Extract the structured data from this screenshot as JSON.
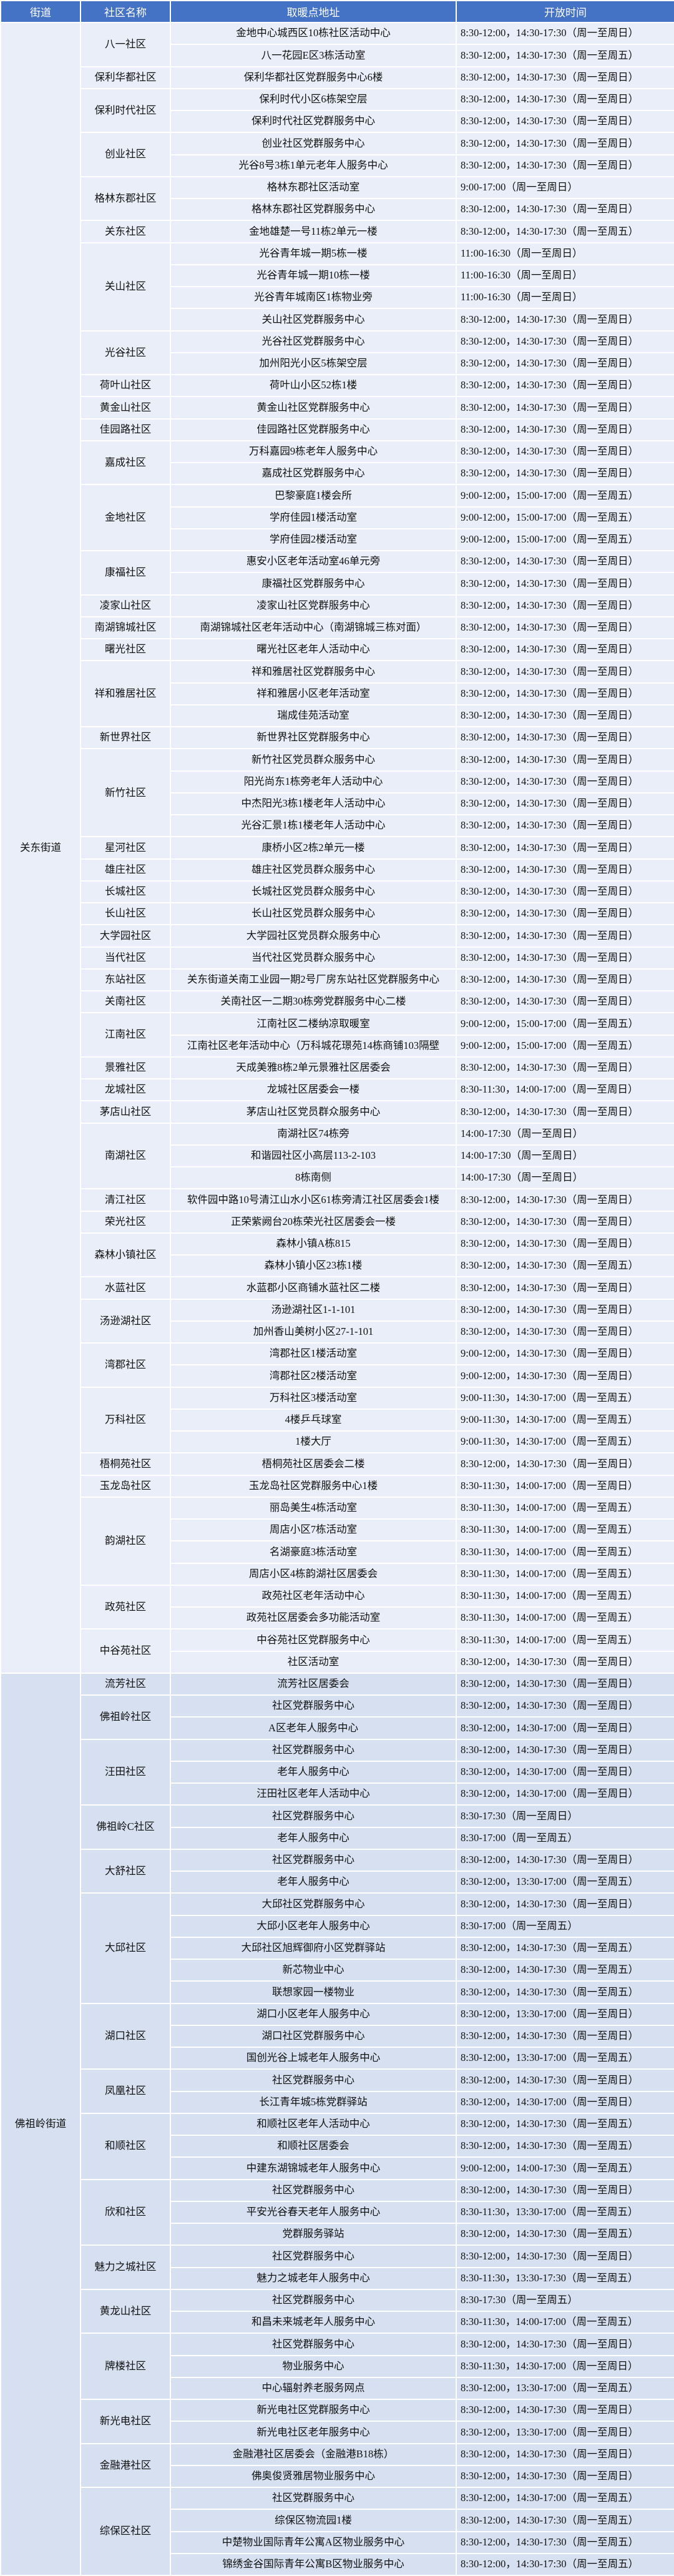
{
  "headers": {
    "street": "街道",
    "community": "社区名称",
    "address": "取暖点地址",
    "hours": "开放时间"
  },
  "streets": [
    {
      "name": "关东街道",
      "communities": [
        {
          "name": "八一社区",
          "sites": [
            {
              "address": "金地中心城西区10栋社区活动中心",
              "hours": "8:30-12:00，14:30-17:30（周一至周日）"
            },
            {
              "address": "八一花园E区3栋活动室",
              "hours": "8:30-12:00，14:30-17:30（周一至周五）"
            }
          ]
        },
        {
          "name": "保利华都社区",
          "sites": [
            {
              "address": "保利华都社区党群服务中心6楼",
              "hours": "8:30-12:00，14:30-17:30（周一至周日）"
            }
          ]
        },
        {
          "name": "保利时代社区",
          "sites": [
            {
              "address": "保利时代小区6栋架空层",
              "hours": "8:30-12:00，14:30-17:30（周一至周日）"
            },
            {
              "address": "保利时代社区党群服务中心",
              "hours": "8:30-12:00，14:30-17:30（周一至周日）"
            }
          ]
        },
        {
          "name": "创业社区",
          "sites": [
            {
              "address": "创业社区党群服务中心",
              "hours": "8:30-12:00，14:30-17:30（周一至周日）"
            },
            {
              "address": "光谷8号3栋1单元老年人服务中心",
              "hours": "8:30-12:00，14:30-17:30（周一至周日）"
            }
          ]
        },
        {
          "name": "格林东郡社区",
          "sites": [
            {
              "address": "格林东郡社区活动室",
              "hours": "9:00-17:00（周一至周日）"
            },
            {
              "address": "格林东郡社区党群服务中心",
              "hours": "8:30-12:00，14:30-17:30（周一至周日）"
            }
          ]
        },
        {
          "name": "关东社区",
          "sites": [
            {
              "address": "金地雄楚一号11栋2单元一楼",
              "hours": "8:30-12:00，14:30-17:30（周一至周五）"
            }
          ]
        },
        {
          "name": "关山社区",
          "sites": [
            {
              "address": "光谷青年城一期5栋一楼",
              "hours": "11:00-16:30（周一至周日）"
            },
            {
              "address": "光谷青年城一期10栋一楼",
              "hours": "11:00-16:30（周一至周日）"
            },
            {
              "address": "光谷青年城南区1栋物业旁",
              "hours": "11:00-16:30（周一至周日）"
            },
            {
              "address": "关山社区党群服务中心",
              "hours": "8:30-12:00，14:30-17:30（周一至周日）"
            }
          ]
        },
        {
          "name": "光谷社区",
          "sites": [
            {
              "address": "光谷社区党群服务中心",
              "hours": "8:30-12:00，14:30-17:30（周一至周日）"
            },
            {
              "address": "加州阳光小区5栋架空层",
              "hours": "8:30-12:00，14:30-17:30（周一至周日）"
            }
          ]
        },
        {
          "name": "荷叶山社区",
          "sites": [
            {
              "address": "荷叶山小区52栋1楼",
              "hours": "8:30-12:00，14:30-17:30（周一至周日）"
            }
          ]
        },
        {
          "name": "黄金山社区",
          "sites": [
            {
              "address": "黄金山社区党群服务中心",
              "hours": "8:30-12:00，14:30-17:30（周一至周日）"
            }
          ]
        },
        {
          "name": "佳园路社区",
          "sites": [
            {
              "address": "佳园路社区党群服务中心",
              "hours": "8:30-12:00，14:30-17:30（周一至周日）"
            }
          ]
        },
        {
          "name": "嘉成社区",
          "sites": [
            {
              "address": "万科嘉园9栋老年人服务中心",
              "hours": "8:30-12:00，14:30-17:30（周一至周日）"
            },
            {
              "address": "嘉成社区党群服务中心",
              "hours": "8:30-12:00，14:30-17:30（周一至周日）"
            }
          ]
        },
        {
          "name": "金地社区",
          "sites": [
            {
              "address": "巴黎豪庭1楼会所",
              "hours": "9:00-12:00，15:00-17:00（周一至周五）"
            },
            {
              "address": "学府佳园1楼活动室",
              "hours": "9:00-12:00，15:00-17:00（周一至周五）"
            },
            {
              "address": "学府佳园2楼活动室",
              "hours": "9:00-12:00，15:00-17:00（周一至周五）"
            }
          ]
        },
        {
          "name": "康福社区",
          "sites": [
            {
              "address": "惠安小区老年活动室46单元旁",
              "hours": "8:30-12:00，14:30-17:30（周一至周日）"
            },
            {
              "address": "康福社区党群服务中心",
              "hours": "8:30-12:00，14:30-17:30（周一至周日）"
            }
          ]
        },
        {
          "name": "凌家山社区",
          "sites": [
            {
              "address": "凌家山社区党群服务中心",
              "hours": "8:30-12:00，14:30-17:30（周一至周日）"
            }
          ]
        },
        {
          "name": "南湖锦城社区",
          "sites": [
            {
              "address": "南湖锦城社区老年活动中心（南湖锦城三栋对面）",
              "hours": "8:30-12:00，14:30-17:30（周一至周日）"
            }
          ]
        },
        {
          "name": "曙光社区",
          "sites": [
            {
              "address": "曙光社区老年人活动中心",
              "hours": "8:30-12:00，14:30-17:30（周一至周日）"
            }
          ]
        },
        {
          "name": "祥和雅居社区",
          "sites": [
            {
              "address": "祥和雅居社区党群服务中心",
              "hours": "8:30-12:00，14:30-17:30（周一至周日）"
            },
            {
              "address": "祥和雅居小区老年活动室",
              "hours": "8:30-12:00，14:30-17:30（周一至周日）"
            },
            {
              "address": "瑞成佳苑活动室",
              "hours": "8:30-12:00，14:30-17:30（周一至周日）"
            }
          ]
        },
        {
          "name": "新世界社区",
          "sites": [
            {
              "address": "新世界社区党群服务中心",
              "hours": "8:30-12:00，14:30-17:30（周一至周日）"
            }
          ]
        },
        {
          "name": "新竹社区",
          "sites": [
            {
              "address": "新竹社区党员群众服务中心",
              "hours": "8:30-12:00，14:30-17:30（周一至周日）"
            },
            {
              "address": "阳光尚东1栋旁老年人活动中心",
              "hours": "8:30-12:00，14:30-17:30（周一至周日）"
            },
            {
              "address": "中杰阳光3栋1楼老年人活动中心",
              "hours": "8:30-12:00，14:30-17:30（周一至周日）"
            },
            {
              "address": "光谷汇景1栋1楼老年人活动中心",
              "hours": "8:30-12:00，14:30-17:30（周一至周日）"
            }
          ]
        },
        {
          "name": "星河社区",
          "sites": [
            {
              "address": "康桥小区2栋2单元一楼",
              "hours": "8:30-12:00，14:30-17:30（周一至周日）"
            }
          ]
        },
        {
          "name": "雄庄社区",
          "sites": [
            {
              "address": "雄庄社区党员群众服务中心",
              "hours": "8:30-12:00，14:30-17:30（周一至周日）"
            }
          ]
        },
        {
          "name": "长城社区",
          "sites": [
            {
              "address": "长城社区党员群众服务中心",
              "hours": "8:30-12:00，14:30-17:30（周一至周日）"
            }
          ]
        },
        {
          "name": "长山社区",
          "sites": [
            {
              "address": "长山社区党员群众服务中心",
              "hours": "8:30-12:00，14:30-17:30（周一至周日）"
            }
          ]
        },
        {
          "name": "大学园社区",
          "sites": [
            {
              "address": "大学园社区党员群众服务中心",
              "hours": "8:30-12:00，14:30-17:30（周一至周日）"
            }
          ]
        },
        {
          "name": "当代社区",
          "sites": [
            {
              "address": "当代社区党员群众服务中心",
              "hours": "8:30-12:00，14:30-17:30（周一至周日）"
            }
          ]
        },
        {
          "name": "东站社区",
          "sites": [
            {
              "address": "关东街道关南工业园一期2号厂房东站社区党群服务中心",
              "hours": "8:30-12:00，14:30-17:30（周一至周日）"
            }
          ]
        },
        {
          "name": "关南社区",
          "sites": [
            {
              "address": "关南社区一二期30栋旁党群服务中心二楼",
              "hours": "8:30-12:00，14:30-17:30（周一至周日）"
            }
          ]
        },
        {
          "name": "江南社区",
          "sites": [
            {
              "address": "江南社区二楼纳凉取暖室",
              "hours": "9:00-12:00，15:00-17:00（周一至周五）"
            },
            {
              "address": "江南社区老年活动中心（万科城花璟苑14栋商铺103隔壁",
              "hours": "9:00-12:00，15:00-17:00（周一至周五）"
            }
          ]
        },
        {
          "name": "景雅社区",
          "sites": [
            {
              "address": "天成美雅8栋2单元景雅社区居委会",
              "hours": "8:30-12:00，14:30-17:30（周一至周日）"
            }
          ]
        },
        {
          "name": "龙城社区",
          "sites": [
            {
              "address": "龙城社区居委会一楼",
              "hours": "8:30-11:30，14:00-17:00（周一至周日）"
            }
          ]
        },
        {
          "name": "茅店山社区",
          "sites": [
            {
              "address": "茅店山社区党员群众服务中心",
              "hours": "8:30-12:00，14:30-17:30（周一至周日）"
            }
          ]
        },
        {
          "name": "南湖社区",
          "sites": [
            {
              "address": "南湖社区74栋旁",
              "hours": "14:00-17:30（周一至周日）"
            },
            {
              "address": "和谐园社区小高层113-2-103",
              "hours": "14:00-17:30（周一至周日）"
            },
            {
              "address": "8栋南侧",
              "hours": "14:00-17:30（周一至周日）"
            }
          ]
        },
        {
          "name": "清江社区",
          "sites": [
            {
              "address": "软件园中路10号清江山水小区61栋旁清江社区居委会1楼",
              "hours": "8:30-12:00，14:30-17:30（周一至周日）"
            }
          ]
        },
        {
          "name": "荣光社区",
          "sites": [
            {
              "address": "正荣紫阙台20栋荣光社区居委会一楼",
              "hours": "8:30-12:00，14:30-17:30（周一至周日）"
            }
          ]
        },
        {
          "name": "森林小镇社区",
          "sites": [
            {
              "address": "森林小镇A栋815",
              "hours": "8:30-12:00，14:30-17:30（周一至周日）"
            },
            {
              "address": "森林小镇小区23栋1楼",
              "hours": "8:30-12:00，14:30-17:30（周一至周五）"
            }
          ]
        },
        {
          "name": "水蓝社区",
          "sites": [
            {
              "address": "水蓝郡小区商铺水蓝社区二楼",
              "hours": "8:30-12:00，14:30-17:30（周一至周日）"
            }
          ]
        },
        {
          "name": "汤逊湖社区",
          "sites": [
            {
              "address": "汤逊湖社区1-1-101",
              "hours": "8:30-12:00，14:30-17:30（周一至周日）"
            },
            {
              "address": "加州香山美树小区27-1-101",
              "hours": "8:30-12:00，14:30-17:30（周一至周日）"
            }
          ]
        },
        {
          "name": "湾郡社区",
          "sites": [
            {
              "address": "湾郡社区1楼活动室",
              "hours": "9:00-12:00，14:30-17:30（周一至周日）"
            },
            {
              "address": "湾郡社区2楼活动室",
              "hours": "9:00-12:00，14:30-17:30（周一至周日）"
            }
          ]
        },
        {
          "name": "万科社区",
          "sites": [
            {
              "address": "万科社区3楼活动室",
              "hours": "9:00-11:30，14:30-17:00（周一至周五）"
            },
            {
              "address": "4楼乒乓球室",
              "hours": "9:00-11:30，14:30-17:00（周一至周五）"
            },
            {
              "address": "1楼大厅",
              "hours": "9:00-11:30，14:30-17:00（周一至周五）"
            }
          ]
        },
        {
          "name": "梧桐苑社区",
          "sites": [
            {
              "address": "梧桐苑社区居委会二楼",
              "hours": "8:30-12:00，14:30-17:30（周一至周日）"
            }
          ]
        },
        {
          "name": "玉龙岛社区",
          "sites": [
            {
              "address": "玉龙岛社区党群服务中心1楼",
              "hours": "8:30-11:30，14:00-17:00（周一至周日）"
            }
          ]
        },
        {
          "name": "韵湖社区",
          "sites": [
            {
              "address": "丽岛美生4栋活动室",
              "hours": "8:30-11:30，14:00-17:00（周一至周五）"
            },
            {
              "address": "周店小区7栋活动室",
              "hours": "8:30-11:30，14:00-17:00（周一至周五）"
            },
            {
              "address": "名湖豪庭3栋活动室",
              "hours": "8:30-11:30，14:00-17:00（周一至周五）"
            },
            {
              "address": "周店小区4栋韵湖社区居委会",
              "hours": "8:30-11:30，14:00-17:00（周一至周五）"
            }
          ]
        },
        {
          "name": "政苑社区",
          "sites": [
            {
              "address": "政苑社区老年活动中心",
              "hours": "8:30-11:30，14:00-17:00（周一至周五）"
            },
            {
              "address": "政苑社区居委会多功能活动室",
              "hours": "8:30-11:30，14:00-17:00（周一至周五）"
            }
          ]
        },
        {
          "name": "中谷苑社区",
          "sites": [
            {
              "address": "中谷苑社区党群服务中心",
              "hours": "8:30-11:30，14:00-17:00（周一至周五）"
            },
            {
              "address": "社区活动室",
              "hours": "8:30-12:00，14:30-17:30（周一至周日）"
            }
          ]
        }
      ]
    },
    {
      "name": "佛祖岭街道",
      "communities": [
        {
          "name": "流芳社区",
          "sites": [
            {
              "address": "流芳社区居委会",
              "hours": "8:30-12:00，14:30-17:30（周一至周日）"
            }
          ]
        },
        {
          "name": "佛祖岭社区",
          "sites": [
            {
              "address": "社区党群服务中心",
              "hours": "8:30-12:00，14:30-17:30（周一至周日）"
            },
            {
              "address": "A区老年人服务中心",
              "hours": "8:30-12:00，14:30-17:00（周一至周日）"
            }
          ]
        },
        {
          "name": "汪田社区",
          "sites": [
            {
              "address": "社区党群服务中心",
              "hours": "8:30-12:00，14:30-17:30（周一至周日）"
            },
            {
              "address": "老年人服务中心",
              "hours": "8:30-12:00，14:30-17:00（周一至周日）"
            },
            {
              "address": "汪田社区老年人活动中心",
              "hours": "8:30-12:00，14:30-17:00（周一至周日）"
            }
          ]
        },
        {
          "name": "佛祖岭C社区",
          "sites": [
            {
              "address": "社区党群服务中心",
              "hours": "8:30-17:30（周一至周日）"
            },
            {
              "address": "老年人服务中心",
              "hours": "8:30-17:00（周一至周五）"
            }
          ]
        },
        {
          "name": "大舒社区",
          "sites": [
            {
              "address": "社区党群服务中心",
              "hours": "8:30-12:00，14:30-17:30（周一至周日）"
            },
            {
              "address": "老年人服务中心",
              "hours": "8:30-12:00，13:30-17:00（周一至周五）"
            }
          ]
        },
        {
          "name": "大邱社区",
          "sites": [
            {
              "address": "大邱社区党群服务中心",
              "hours": "8:30-12:00，14:30-17:30（周一至周日）"
            },
            {
              "address": "大邱小区老年人服务中心",
              "hours": "8:30-17:00（周一至周五）"
            },
            {
              "address": "大邱社区旭辉御府小区党群驿站",
              "hours": "8:30-12:00，14:30-17:30（周一至周五）"
            },
            {
              "address": "新芯物业中心",
              "hours": "8:30-12:00，14:30-17:30（周一至周五）"
            },
            {
              "address": "联想家园一楼物业",
              "hours": "8:30-12:00，14:30-17:30（周一至周五）"
            }
          ]
        },
        {
          "name": "湖口社区",
          "sites": [
            {
              "address": "湖口小区老年人服务中心",
              "hours": "8:30-12:00，13:30-17:00（周一至周日）"
            },
            {
              "address": "湖口社区党群服务中心",
              "hours": "8:30-12:00，14:30-17:30（周一至周日）"
            },
            {
              "address": "国创光谷上城老年人服务中心",
              "hours": "8:30-12:00，13:30-17:00（周一至周五）"
            }
          ]
        },
        {
          "name": "凤凰社区",
          "sites": [
            {
              "address": "社区党群服务中心",
              "hours": "8:30-12:00，14:30-17:30（周一至周日）"
            },
            {
              "address": "长江青年城5栋党群驿站",
              "hours": "8:30-12:00，14:30-17:00（周一至周日）"
            }
          ]
        },
        {
          "name": "和顺社区",
          "sites": [
            {
              "address": "和顺社区老年人活动中心",
              "hours": "8:30-12:00，14:30-17:30（周一至周五）"
            },
            {
              "address": "和顺社区居委会",
              "hours": "8:30-12:00，14:30-17:30（周一至周五）"
            },
            {
              "address": "中建东湖锦城老年人服务中心",
              "hours": "9:00-12:00，14:00-17:30（周一至周五）"
            }
          ]
        },
        {
          "name": "欣和社区",
          "sites": [
            {
              "address": "社区党群服务中心",
              "hours": "8:30-12:00，14:30-17:30（周一至周日）"
            },
            {
              "address": "平安光谷春天老年人服务中心",
              "hours": "8:30-11:30，13:30-17:00（周一至周五）"
            },
            {
              "address": "党群服务驿站",
              "hours": "8:30-12:00，14:30-17:30（周一至周五）"
            }
          ]
        },
        {
          "name": "魅力之城社区",
          "sites": [
            {
              "address": "社区党群服务中心",
              "hours": "8:30-12:00，14:30-17:30（周一至周日）"
            },
            {
              "address": "魅力之城老年人服务中心",
              "hours": "8:30-11:30，13:30-17:30（周一至周五）"
            }
          ]
        },
        {
          "name": "黄龙山社区",
          "sites": [
            {
              "address": "社区党群服务中心",
              "hours": "8:30-17:30（周一至周五）"
            },
            {
              "address": "和昌未来城老年人服务中心",
              "hours": "8:30-11:30，14:00-17:00（周一至周五）"
            }
          ]
        },
        {
          "name": "牌楼社区",
          "sites": [
            {
              "address": "社区党群服务中心",
              "hours": "8:30-12:00，14:30-17:30（周一至周日）"
            },
            {
              "address": "物业服务中心",
              "hours": "8:30-11:30，14:30-17:00（周一至周日）"
            },
            {
              "address": "中心辐射养老服务网点",
              "hours": "8:30-12:00，13:30-17:00（周一至周五）"
            }
          ]
        },
        {
          "name": "新光电社区",
          "sites": [
            {
              "address": "新光电社区党群服务中心",
              "hours": "8:30-12:00，14:30-17:30（周一至周日）"
            },
            {
              "address": "新光电社区老年服务中心",
              "hours": "8:30-12:00，13:30-17:00（周一至周日）"
            }
          ]
        },
        {
          "name": "金融港社区",
          "sites": [
            {
              "address": "金融港社区居委会（金融港B18栋）",
              "hours": "8:30-12:00，14:30-17:30（周一至周日）"
            },
            {
              "address": "佛奥俊贤雅居物业服务中心",
              "hours": "8:30-12:00，14:30-17:30（周一至周日）"
            }
          ]
        },
        {
          "name": "综保区社区",
          "sites": [
            {
              "address": "社区党群服务中心",
              "hours": "8:30-12:00，14:30-17:00（周一至周五）"
            },
            {
              "address": "综保区物流园1楼",
              "hours": "8:30-12:00，14:30-17:30（周一至周五）"
            },
            {
              "address": "中楚物业国际青年公寓A区物业服务中心",
              "hours": "8:30-12:00，14:30-17:30（周一至周五）"
            },
            {
              "address": "锦绣金谷国际青年公寓B区物业服务中心",
              "hours": "8:30-12:00，14:30-17:30（周一至周五）"
            }
          ]
        }
      ]
    }
  ],
  "colors": {
    "header_bg": "#4472C4",
    "street1_bg": "#E9EEF8",
    "street2_bg": "#D6E0F1"
  }
}
